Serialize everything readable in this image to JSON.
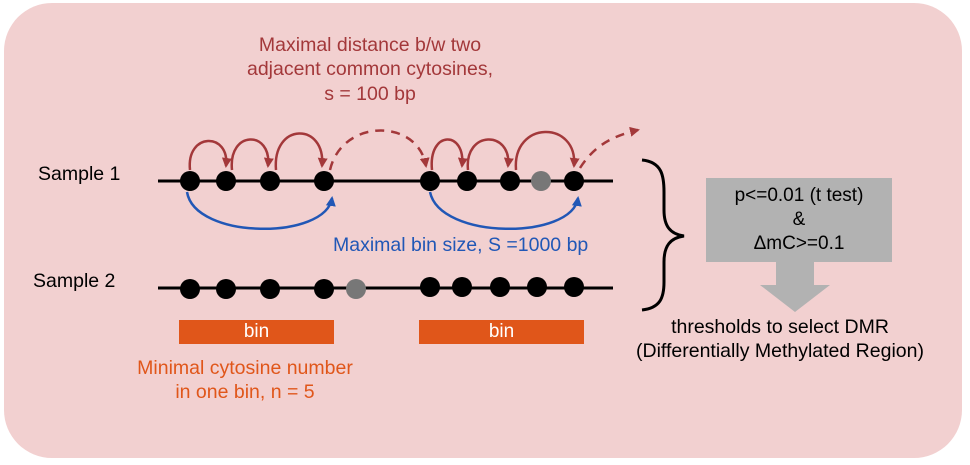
{
  "title_lines": [
    "Maximal distance b/w two",
    "adjacent common cytosines,",
    "s = 100 bp"
  ],
  "sample1_label": "Sample 1",
  "sample2_label": "Sample 2",
  "bin_size_label": "Maximal bin size, S =1000 bp",
  "bin_labels": [
    "bin",
    "bin"
  ],
  "min_number_lines": [
    "Minimal cytosine number",
    "in one bin, n = 5"
  ],
  "criteria_lines": [
    "p<=0.01 (t test)",
    "&",
    "ΔmC>=0.1"
  ],
  "threshold_lines": [
    "thresholds to select DMR",
    "(Differentially Methylated Region)"
  ],
  "colors": {
    "background_panel": "#f2d0d0",
    "red_arrows": "#a3383a",
    "blue_arrows": "#2157b6",
    "bin_orange": "#e0561a",
    "common_cytosine": "#000000",
    "non_common_cytosine": "#777777",
    "criteria_box": "#b2b2b2"
  }
}
